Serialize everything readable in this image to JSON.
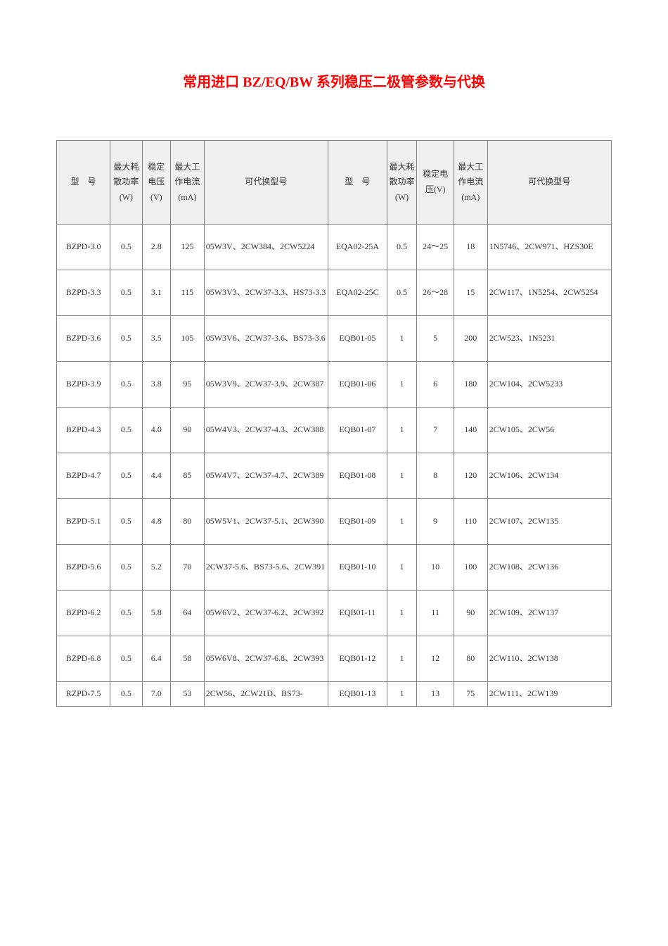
{
  "title": "常用进口 BZ/EQ/BW 系列稳压二极管参数与代换",
  "headers": {
    "model": "型　号",
    "max_power": "最大耗散功率(W)",
    "zener_v": "稳定电压(V)",
    "max_current": "最大工作电流(mA)",
    "substitute": "可代换型号"
  },
  "rows": [
    {
      "l": {
        "model": "BZPD-3.0",
        "pw": "0.5",
        "v": "2.8",
        "ma": "125",
        "sub": "05W3V、2CW384、2CW5224"
      },
      "r": {
        "model": "EQA02-25A",
        "pw": "0.5",
        "v": "24～25",
        "ma": "18",
        "sub": "1N5746、2CW971、HZS30E"
      }
    },
    {
      "l": {
        "model": "BZPD-3.3",
        "pw": "0.5",
        "v": "3.1",
        "ma": "115",
        "sub": "05W3V3、2CW37-3.3、HS73-3.3"
      },
      "r": {
        "model": "EQA02-25C",
        "pw": "0.5",
        "v": "26～28",
        "ma": "15",
        "sub": "2CW117、1N5254、2CW5254"
      }
    },
    {
      "l": {
        "model": "BZPD-3.6",
        "pw": "0.5",
        "v": "3.5",
        "ma": "105",
        "sub": "05W3V6、2CW37-3.6、BS73-3.6"
      },
      "r": {
        "model": "EQB01-05",
        "pw": "1",
        "v": "5",
        "ma": "200",
        "sub": "2CW523、1N5231"
      }
    },
    {
      "l": {
        "model": "BZPD-3.9",
        "pw": "0.5",
        "v": "3.8",
        "ma": "95",
        "sub": "05W3V9、2CW37-3.9、2CW387"
      },
      "r": {
        "model": "EQB01-06",
        "pw": "1",
        "v": "6",
        "ma": "180",
        "sub": "2CW104、2CW5233"
      }
    },
    {
      "l": {
        "model": "BZPD-4.3",
        "pw": "0.5",
        "v": "4.0",
        "ma": "90",
        "sub": "05W4V3、2CW37-4.3、2CW388"
      },
      "r": {
        "model": "EQB01-07",
        "pw": "1",
        "v": "7",
        "ma": "140",
        "sub": "2CW105、2CW56"
      }
    },
    {
      "l": {
        "model": "BZPD-4.7",
        "pw": "0.5",
        "v": "4.4",
        "ma": "85",
        "sub": "05W4V7、2CW37-4.7、2CW389"
      },
      "r": {
        "model": "EQB01-08",
        "pw": "1",
        "v": "8",
        "ma": "120",
        "sub": "2CW106、2CW134"
      }
    },
    {
      "l": {
        "model": "BZPD-5.1",
        "pw": "0.5",
        "v": "4.8",
        "ma": "80",
        "sub": "05W5V1、2CW37-5.1、2CW390"
      },
      "r": {
        "model": "EQB01-09",
        "pw": "1",
        "v": "9",
        "ma": "110",
        "sub": "2CW107、2CW135"
      }
    },
    {
      "l": {
        "model": "BZPD-5.6",
        "pw": "0.5",
        "v": "5.2",
        "ma": "70",
        "sub": "2CW37-5.6、BS73-5.6、2CW391"
      },
      "r": {
        "model": "EQB01-10",
        "pw": "1",
        "v": "10",
        "ma": "100",
        "sub": "2CW108、2CW136"
      }
    },
    {
      "l": {
        "model": "BZPD-6.2",
        "pw": "0.5",
        "v": "5.8",
        "ma": "64",
        "sub": "05W6V2、2CW37-6.2、2CW392"
      },
      "r": {
        "model": "EQB01-11",
        "pw": "1",
        "v": "11",
        "ma": "90",
        "sub": "2CW109、2CW137"
      }
    },
    {
      "l": {
        "model": "BZPD-6.8",
        "pw": "0.5",
        "v": "6.4",
        "ma": "58",
        "sub": "05W6V8、2CW37-6.8、2CW393"
      },
      "r": {
        "model": "EQB01-12",
        "pw": "1",
        "v": "12",
        "ma": "80",
        "sub": "2CW110、2CW138"
      }
    },
    {
      "l": {
        "model": "RZPD-7.5",
        "pw": "0.5",
        "v": "7.0",
        "ma": "53",
        "sub": "2CW56、2CW21D、BS73-"
      },
      "r": {
        "model": "EQB01-13",
        "pw": "1",
        "v": "13",
        "ma": "75",
        "sub": "2CW111、2CW139"
      }
    }
  ]
}
